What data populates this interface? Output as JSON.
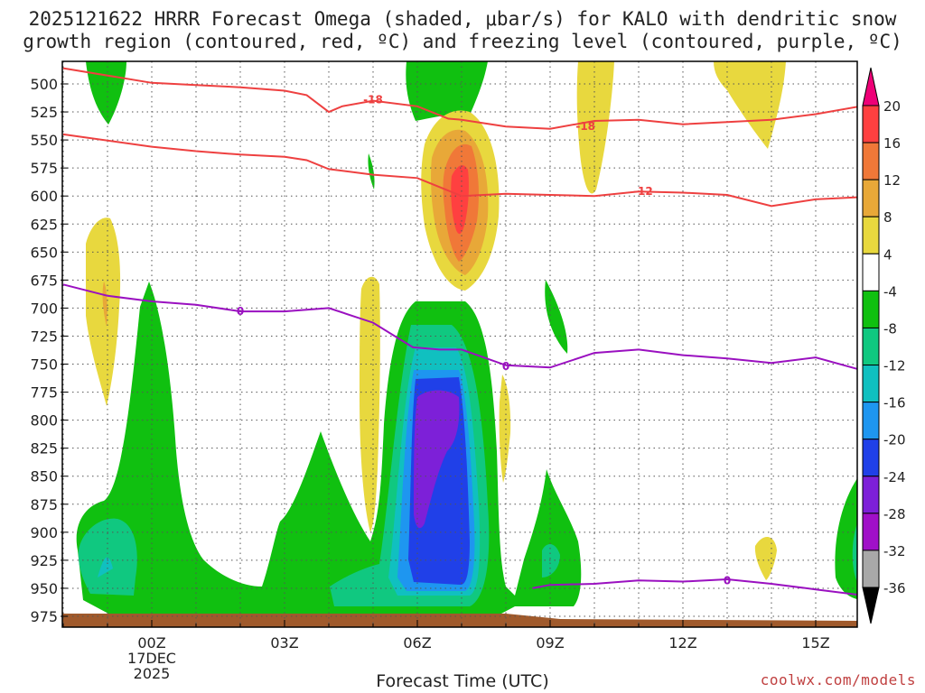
{
  "chart_data": {
    "type": "contour",
    "title_line1": "2025121622 HRRR Forecast Omega (shaded, μbar/s) for KALO with dendritic snow",
    "title_line2": "growth region (contoured, red, ºC) and freezing level (contoured, purple, ºC)",
    "xlabel": "Forecast Time (UTC)",
    "ylabel": "",
    "x_ticks": [
      {
        "label": "00Z",
        "sub1": "17DEC",
        "sub2": "2025",
        "hour": 0
      },
      {
        "label": "03Z",
        "hour": 3
      },
      {
        "label": "06Z",
        "hour": 6
      },
      {
        "label": "09Z",
        "hour": 9
      },
      {
        "label": "12Z",
        "hour": 12
      },
      {
        "label": "15Z",
        "hour": 15
      }
    ],
    "xlim": [
      -2,
      16
    ],
    "y_ticks": [
      500,
      525,
      550,
      575,
      600,
      625,
      650,
      675,
      700,
      725,
      750,
      775,
      800,
      825,
      850,
      875,
      900,
      925,
      950,
      975
    ],
    "ylim_hPa": [
      485,
      983
    ],
    "colorbar": {
      "labels": [
        "20",
        "16",
        "12",
        "8",
        "4",
        "-4",
        "-8",
        "-12",
        "-16",
        "-20",
        "-24",
        "-28",
        "-32",
        "-36"
      ],
      "colors": [
        "#ee0077",
        "#ff4040",
        "#f07838",
        "#e8a838",
        "#e8d83e",
        "#ffffff",
        "#10c010",
        "#10c880",
        "#10c0c0",
        "#1e96f0",
        "#2040e8",
        "#7d20d8",
        "#a010c8",
        "#a8a8a8",
        "#000000"
      ]
    },
    "contours": [
      {
        "name": "dgz-top",
        "color": "#ee4040",
        "label": "-18",
        "points": [
          [
            -2,
            486
          ],
          [
            0,
            499
          ],
          [
            1,
            501
          ],
          [
            2,
            503
          ],
          [
            3,
            506
          ],
          [
            3.5,
            510
          ],
          [
            4,
            525
          ],
          [
            4.3,
            520
          ],
          [
            5,
            515
          ],
          [
            6,
            520
          ],
          [
            6.7,
            531
          ],
          [
            7,
            532
          ],
          [
            8,
            538
          ],
          [
            9,
            540
          ],
          [
            10,
            533
          ],
          [
            11,
            532
          ],
          [
            12,
            536
          ],
          [
            13,
            534
          ],
          [
            14,
            532
          ],
          [
            15,
            527
          ],
          [
            16,
            520
          ]
        ],
        "label_at": [
          [
            5,
            514
          ],
          [
            9.8,
            538
          ]
        ]
      },
      {
        "name": "dgz-bottom",
        "color": "#ee4040",
        "label": "-12",
        "points": [
          [
            -2,
            545
          ],
          [
            0,
            556
          ],
          [
            1,
            560
          ],
          [
            2,
            563
          ],
          [
            3,
            565
          ],
          [
            3.5,
            568
          ],
          [
            4,
            576
          ],
          [
            5,
            581
          ],
          [
            6,
            584
          ],
          [
            7,
            600
          ],
          [
            8,
            598
          ],
          [
            9,
            599
          ],
          [
            10,
            600
          ],
          [
            11,
            596
          ],
          [
            12,
            597
          ],
          [
            13,
            599
          ],
          [
            14,
            609
          ],
          [
            15,
            603
          ],
          [
            16,
            601
          ]
        ],
        "label_at": [
          [
            11.1,
            596
          ]
        ]
      },
      {
        "name": "freezing-upper",
        "color": "#9a10c0",
        "label": "0",
        "points": [
          [
            -2,
            679
          ],
          [
            -1,
            689
          ],
          [
            0,
            694
          ],
          [
            1,
            697
          ],
          [
            2,
            703
          ],
          [
            3,
            703
          ],
          [
            4,
            700
          ],
          [
            5,
            713
          ],
          [
            5.9,
            735
          ],
          [
            6.5,
            737
          ],
          [
            7,
            737
          ],
          [
            8,
            751
          ],
          [
            9,
            753
          ],
          [
            10,
            740
          ],
          [
            11,
            737
          ],
          [
            12,
            742
          ],
          [
            13,
            745
          ],
          [
            14,
            749
          ],
          [
            15,
            744
          ],
          [
            16,
            755
          ]
        ],
        "label_at": [
          [
            2,
            703
          ],
          [
            8,
            752
          ]
        ]
      },
      {
        "name": "freezing-lower",
        "color": "#9a10c0",
        "label": "0",
        "points": [
          [
            8.6,
            950
          ],
          [
            9,
            947
          ],
          [
            10,
            946
          ],
          [
            11,
            943
          ],
          [
            12,
            944
          ],
          [
            13,
            942
          ],
          [
            14,
            946
          ],
          [
            15,
            951
          ],
          [
            16,
            956
          ]
        ],
        "label_at": [
          [
            13,
            943
          ]
        ]
      }
    ]
  },
  "credit": "coolwx.com/models"
}
